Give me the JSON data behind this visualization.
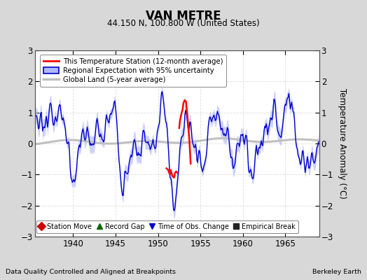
{
  "title": "VAN METRE",
  "subtitle": "44.150 N, 100.800 W (United States)",
  "ylabel": "Temperature Anomaly (°C)",
  "xlabel_left": "Data Quality Controlled and Aligned at Breakpoints",
  "xlabel_right": "Berkeley Earth",
  "ylim": [
    -3,
    3
  ],
  "xlim": [
    1935.5,
    1969.0
  ],
  "xticks": [
    1940,
    1945,
    1950,
    1955,
    1960,
    1965
  ],
  "yticks": [
    -3,
    -2,
    -1,
    0,
    1,
    2,
    3
  ],
  "bg_color": "#d8d8d8",
  "plot_bg_color": "#ffffff",
  "regional_color": "#0000cc",
  "regional_fill_color": "#b0b8ff",
  "station_color": "#ff0000",
  "global_color": "#c0c0c0",
  "legend_items": [
    {
      "label": "This Temperature Station (12-month average)",
      "color": "#ff0000",
      "lw": 2.0
    },
    {
      "label": "Regional Expectation with 95% uncertainty",
      "color": "#0000cc",
      "fill": "#b0b8ff",
      "lw": 1.5
    },
    {
      "label": "Global Land (5-year average)",
      "color": "#c0c0c0",
      "lw": 2.5
    }
  ],
  "bottom_legend": [
    {
      "label": "Station Move",
      "marker": "D",
      "color": "#cc0000"
    },
    {
      "label": "Record Gap",
      "marker": "^",
      "color": "#006600"
    },
    {
      "label": "Time of Obs. Change",
      "marker": "v",
      "color": "#0000cc"
    },
    {
      "label": "Empirical Break",
      "marker": "s",
      "color": "#222222"
    }
  ],
  "seed": 12345,
  "grid_color": "#dddddd",
  "grid_style": "--"
}
